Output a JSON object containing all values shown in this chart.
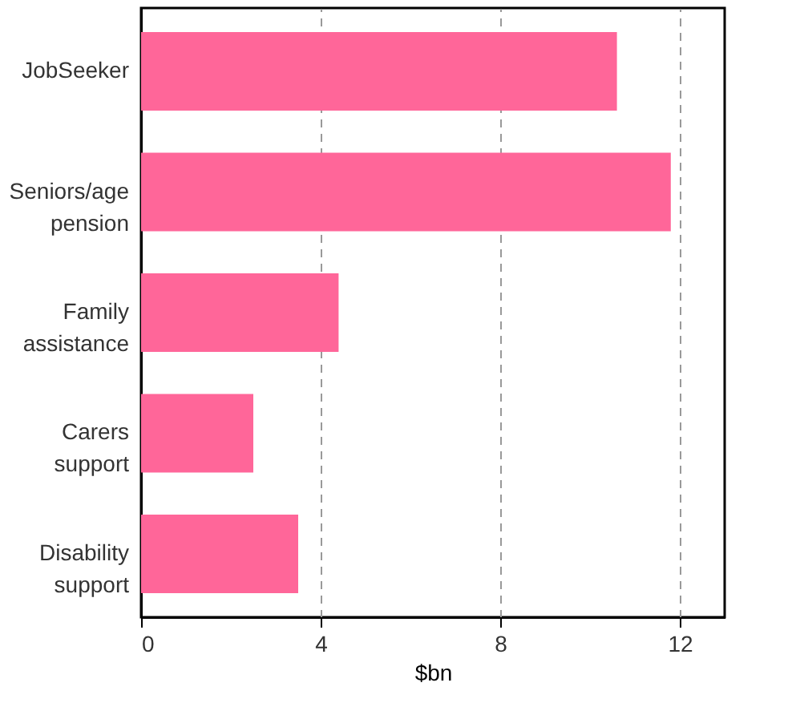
{
  "chart_data": {
    "type": "bar",
    "orientation": "horizontal",
    "xlabel": "$bn",
    "categories": [
      "JobSeeker",
      "Seniors/age pension",
      "Family assistance",
      "Carers support",
      "Disability support"
    ],
    "values": [
      10.6,
      11.8,
      4.4,
      2.5,
      3.5
    ],
    "color": "#ff6699",
    "xlim": [
      0,
      13
    ],
    "xticks": [
      0,
      4,
      8,
      12
    ],
    "grid": "x"
  }
}
